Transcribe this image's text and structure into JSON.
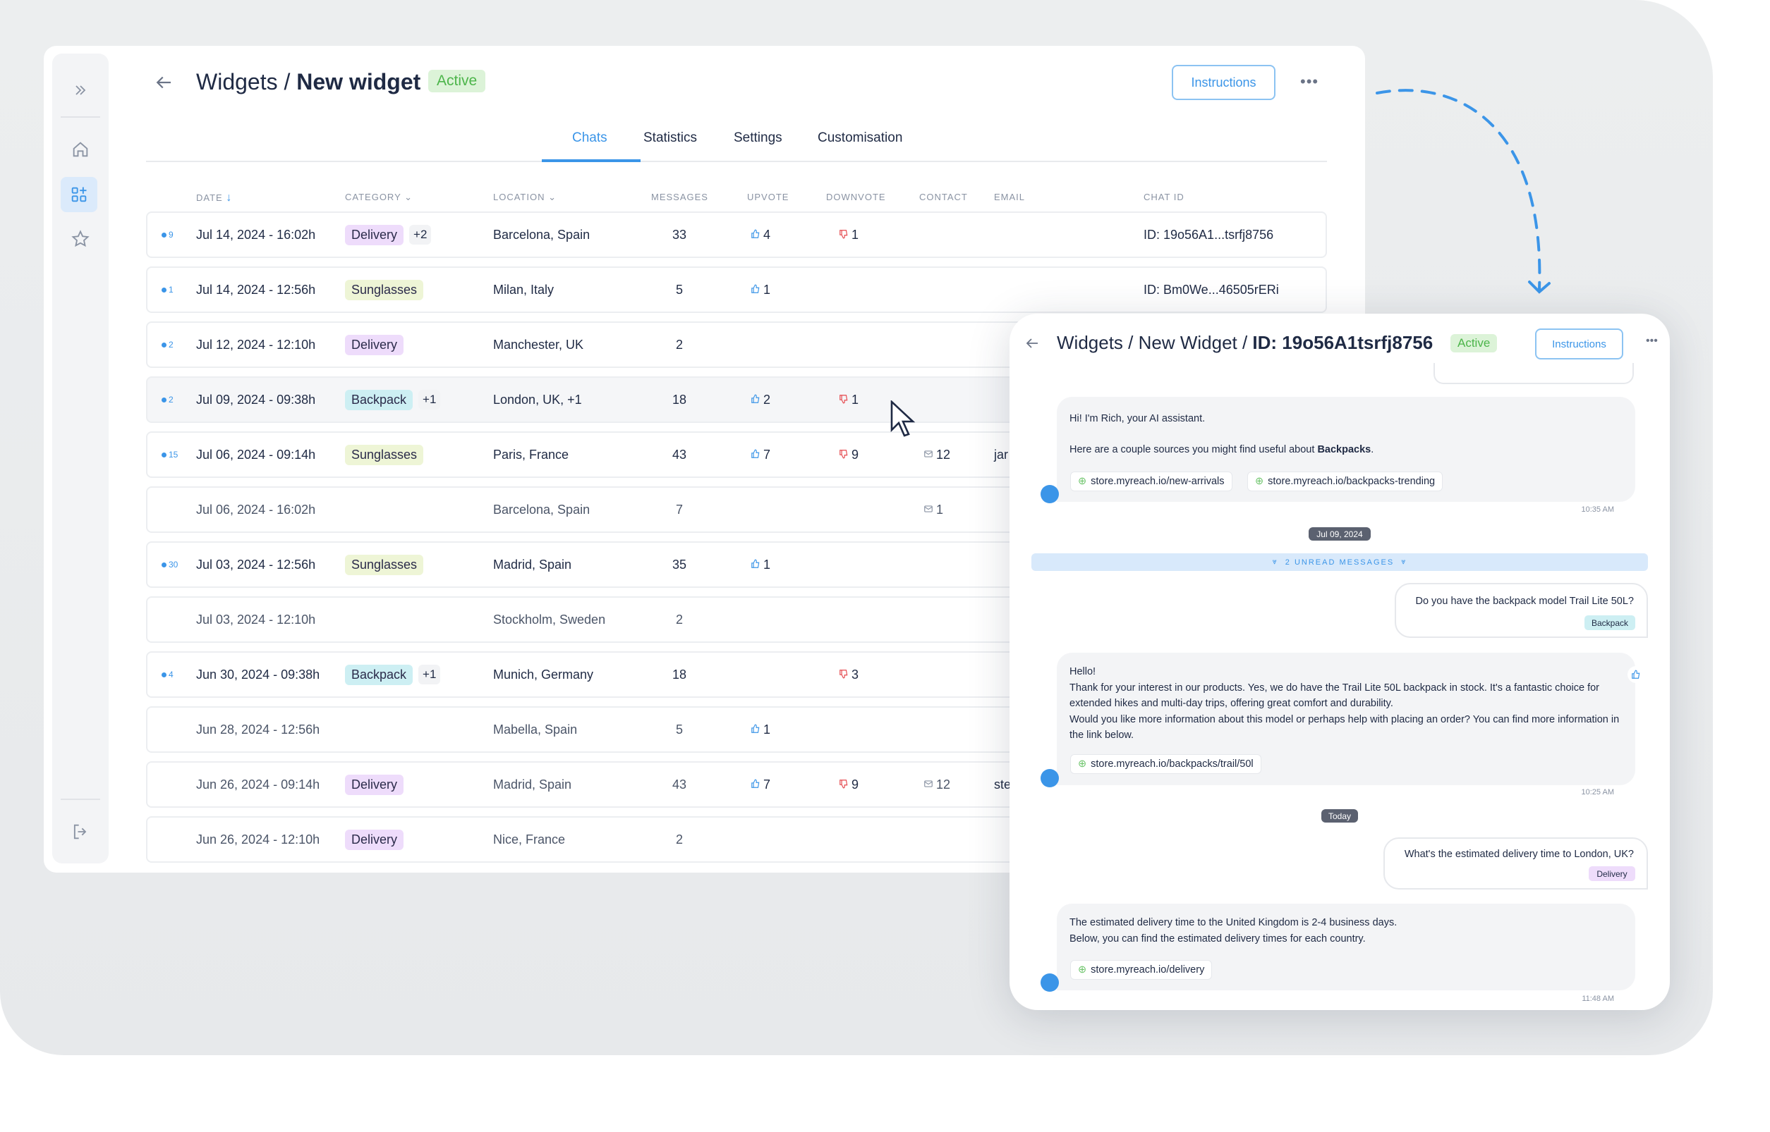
{
  "header": {
    "back_icon": "arrow-left-icon",
    "breadcrumb_parent": "Widgets / ",
    "breadcrumb_current": "New widget",
    "status": "Active",
    "instructions_label": "Instructions",
    "more_icon": "more-horizontal-icon"
  },
  "sidebar": {
    "items": [
      {
        "icon": "chevrons-right-icon"
      },
      {
        "icon": "home-icon"
      },
      {
        "icon": "widgets-icon",
        "active": true
      },
      {
        "icon": "star-icon"
      },
      {
        "icon": "logout-icon"
      }
    ]
  },
  "tabs": [
    {
      "label": "Chats",
      "active": true
    },
    {
      "label": "Statistics"
    },
    {
      "label": "Settings"
    },
    {
      "label": "Customisation"
    }
  ],
  "table": {
    "columns": [
      "DATE",
      "CATEGORY",
      "LOCATION",
      "MESSAGES",
      "UPVOTE",
      "DOWNVOTE",
      "CONTACT",
      "EMAIL",
      "CHAT ID"
    ],
    "sort": "date-descending",
    "rows": [
      {
        "unread": "9",
        "date": "Jul 14, 2024 - 16:02h",
        "category": "Delivery",
        "extra": "+2",
        "location": "Barcelona, Spain",
        "messages": "33",
        "upvote": "4",
        "downvote": "1",
        "contact": "",
        "email": "",
        "chat_id": "ID: 19o56A1...tsrfj8756"
      },
      {
        "unread": "1",
        "date": "Jul 14, 2024 - 12:56h",
        "category": "Sunglasses",
        "extra": "",
        "location": "Milan, Italy",
        "messages": "5",
        "upvote": "1",
        "downvote": "",
        "contact": "",
        "email": "",
        "chat_id": "ID: Bm0We...46505rERi"
      },
      {
        "unread": "2",
        "date": "Jul 12, 2024 - 12:10h",
        "category": "Delivery",
        "extra": "",
        "location": "Manchester, UK",
        "messages": "2",
        "upvote": "",
        "downvote": "",
        "contact": "",
        "email": "",
        "chat_id": ""
      },
      {
        "unread": "2",
        "date": "Jul 09, 2024 - 09:38h",
        "category": "Backpack",
        "extra": "+1",
        "location": "London, UK, +1",
        "messages": "18",
        "upvote": "2",
        "downvote": "1",
        "contact": "",
        "email": "",
        "chat_id": "",
        "hover": true
      },
      {
        "unread": "15",
        "date": "Jul 06, 2024 - 09:14h",
        "category": "Sunglasses",
        "extra": "",
        "location": "Paris, France",
        "messages": "43",
        "upvote": "7",
        "downvote": "9",
        "contact": "12",
        "email": "jar",
        "chat_id": ""
      },
      {
        "unread": "",
        "date": "Jul 06, 2024 - 16:02h",
        "category": "",
        "extra": "",
        "location": "Barcelona, Spain",
        "messages": "7",
        "upvote": "",
        "downvote": "",
        "contact": "1",
        "email": "",
        "chat_id": ""
      },
      {
        "unread": "30",
        "date": "Jul 03, 2024 - 12:56h",
        "category": "Sunglasses",
        "extra": "",
        "location": "Madrid, Spain",
        "messages": "35",
        "upvote": "1",
        "downvote": "",
        "contact": "",
        "email": "",
        "chat_id": ""
      },
      {
        "unread": "",
        "date": "Jul 03, 2024 - 12:10h",
        "category": "",
        "extra": "",
        "location": "Stockholm, Sweden",
        "messages": "2",
        "upvote": "",
        "downvote": "",
        "contact": "",
        "email": "",
        "chat_id": ""
      },
      {
        "unread": "4",
        "date": "Jun 30, 2024 - 09:38h",
        "category": "Backpack",
        "extra": "+1",
        "location": "Munich, Germany",
        "messages": "18",
        "upvote": "",
        "downvote": "3",
        "contact": "",
        "email": "",
        "chat_id": ""
      },
      {
        "unread": "",
        "date": "Jun 28, 2024 - 12:56h",
        "category": "",
        "extra": "",
        "location": "Mabella, Spain",
        "messages": "5",
        "upvote": "1",
        "downvote": "",
        "contact": "",
        "email": "",
        "chat_id": ""
      },
      {
        "unread": "",
        "date": "Jun 26, 2024 - 09:14h",
        "category": "Delivery",
        "extra": "",
        "location": "Madrid, Spain",
        "messages": "43",
        "upvote": "7",
        "downvote": "9",
        "contact": "12",
        "email": "ste",
        "chat_id": ""
      },
      {
        "unread": "",
        "date": "Jun 26, 2024 - 12:10h",
        "category": "Delivery",
        "extra": "",
        "location": "Nice, France",
        "messages": "2",
        "upvote": "",
        "downvote": "",
        "contact": "",
        "email": "",
        "chat_id": ""
      }
    ]
  },
  "chat": {
    "breadcrumb": "Widgets / New Widget / ",
    "chat_id": "ID: 19o56A1tsrfj8756",
    "status": "Active",
    "instructions_label": "Instructions",
    "msg1": {
      "line1": "Hi! I'm Rich, your AI assistant.",
      "line2_pre": "Here are a couple sources you might find useful about ",
      "line2_bold": "Backpacks",
      "line2_post": ".",
      "links": [
        "store.myreach.io/new-arrivals",
        "store.myreach.io/backpacks-trending"
      ],
      "time": "10:35 AM"
    },
    "date1": "Jul 09, 2024",
    "unread": "2 UNREAD MESSAGES",
    "user1": {
      "text": "Do you have the backpack model Trail Lite 50L?",
      "tag": "Backpack"
    },
    "msg2": {
      "line1": "Hello!",
      "line2": "Thank for your interest in our products. Yes, we do have the Trail Lite 50L backpack in stock. It's a fantastic choice for extended hikes and multi-day trips, offering great comfort and durability.",
      "line3": "Would you like more information about this model or perhaps help with placing an order? You can find more information in the link below.",
      "link": "store.myreach.io/backpacks/trail/50l",
      "time": "10:25 AM"
    },
    "date2": "Today",
    "user2": {
      "text": "What's the estimated delivery time to London, UK?",
      "tag": "Delivery"
    },
    "msg3": {
      "line1": "The estimated delivery time to the United Kingdom is 2-4 business days.",
      "line2": "Below, you can find the estimated delivery times for each country.",
      "link": "store.myreach.io/delivery",
      "time": "11:48 AM"
    }
  },
  "colors": {
    "accent": "#3b95e8",
    "active_badge": "#dcf3d8",
    "downvote": "#e5484d",
    "delivery_tag": "#eedcfb",
    "sunglasses_tag": "#eef5d6",
    "backpack_tag": "#cdeff3"
  }
}
